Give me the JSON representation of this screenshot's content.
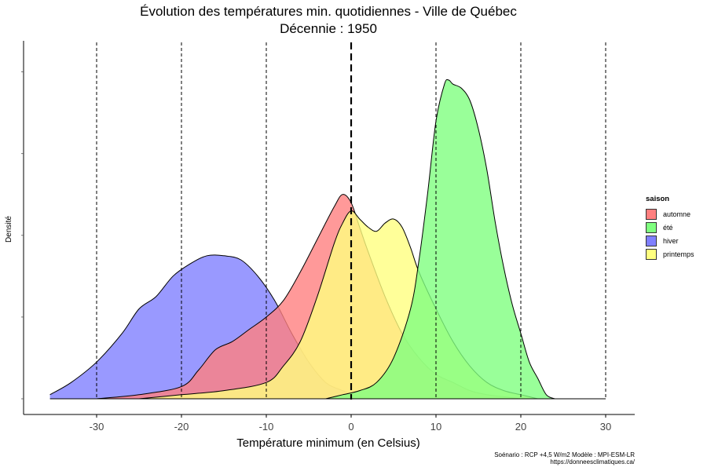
{
  "chart_data": {
    "type": "area",
    "title": "Évolution des températures min. quotidiennes - Ville de Québec",
    "subtitle": "Décennie : 1950",
    "xlabel": "Température minimum (en Celsius)",
    "ylabel": "Densité",
    "xlim": [
      -37,
      33
    ],
    "ylim": [
      0,
      0.082
    ],
    "x_ticks": [
      -30,
      -20,
      -10,
      0,
      10,
      20,
      30
    ],
    "x_tick_labels": [
      "-30",
      "-20",
      "-10",
      "0",
      "10",
      "20",
      "30"
    ],
    "vertical_reference_lines": [
      -30,
      -20,
      -10,
      0,
      10,
      20,
      30
    ],
    "emphasized_reference_line": 0,
    "grid": false,
    "legend": {
      "title": "saison",
      "placement": "right"
    },
    "series": [
      {
        "name": "hiver",
        "color": "#7f7fff",
        "x": [
          -35.5,
          -33,
          -30,
          -27,
          -25,
          -23,
          -21,
          -19,
          -17,
          -15,
          -13,
          -11,
          -9,
          -7,
          -5,
          -3,
          -1,
          1,
          3
        ],
        "y": [
          0.001,
          0.004,
          0.009,
          0.016,
          0.022,
          0.025,
          0.03,
          0.033,
          0.035,
          0.035,
          0.034,
          0.03,
          0.024,
          0.016,
          0.009,
          0.004,
          0.002,
          0.0005,
          0.0
        ]
      },
      {
        "name": "automne",
        "color": "#ff7f7f",
        "x": [
          -30,
          -25,
          -20,
          -18,
          -16,
          -14,
          -12,
          -10,
          -8,
          -6,
          -4,
          -2,
          -1,
          0,
          1,
          2,
          4,
          6,
          8,
          10,
          12,
          14,
          16,
          18,
          20
        ],
        "y": [
          0.0,
          0.001,
          0.003,
          0.007,
          0.012,
          0.014,
          0.017,
          0.02,
          0.024,
          0.031,
          0.039,
          0.047,
          0.05,
          0.048,
          0.042,
          0.036,
          0.025,
          0.016,
          0.01,
          0.006,
          0.004,
          0.002,
          0.001,
          0.0005,
          0.0
        ]
      },
      {
        "name": "printemps",
        "color": "#ffff7f",
        "x": [
          -25,
          -20,
          -15,
          -10,
          -8,
          -6,
          -4,
          -2,
          -1,
          0,
          1,
          2,
          3,
          4,
          5,
          6,
          7,
          8,
          10,
          12,
          14,
          16,
          18,
          20,
          22
        ],
        "y": [
          0.0,
          0.001,
          0.002,
          0.004,
          0.008,
          0.014,
          0.025,
          0.038,
          0.043,
          0.046,
          0.044,
          0.042,
          0.041,
          0.043,
          0.044,
          0.042,
          0.037,
          0.031,
          0.022,
          0.014,
          0.008,
          0.004,
          0.002,
          0.001,
          0.0
        ]
      },
      {
        "name": "été",
        "color": "#7fff7f",
        "x": [
          -3,
          -1,
          1,
          3,
          5,
          7,
          8,
          9,
          10,
          11,
          11.5,
          12,
          13,
          14,
          15,
          16,
          17,
          18,
          19,
          20,
          21,
          22,
          23,
          24
        ],
        "y": [
          0.0,
          0.001,
          0.002,
          0.004,
          0.01,
          0.022,
          0.034,
          0.05,
          0.068,
          0.077,
          0.078,
          0.077,
          0.076,
          0.073,
          0.066,
          0.056,
          0.043,
          0.032,
          0.023,
          0.016,
          0.009,
          0.005,
          0.001,
          0.0
        ]
      }
    ]
  },
  "legend_items": [
    {
      "label": "automne",
      "color": "#ff7f7f"
    },
    {
      "label": "été",
      "color": "#7fff7f"
    },
    {
      "label": "hiver",
      "color": "#7f7fff"
    },
    {
      "label": "printemps",
      "color": "#ffff7f"
    }
  ],
  "caption": {
    "line1": "Soénario : RCP +4,5 W/m2     Modèle : MPI-ESM-LR",
    "line2": "https://donneesclimatiques.ca/"
  }
}
